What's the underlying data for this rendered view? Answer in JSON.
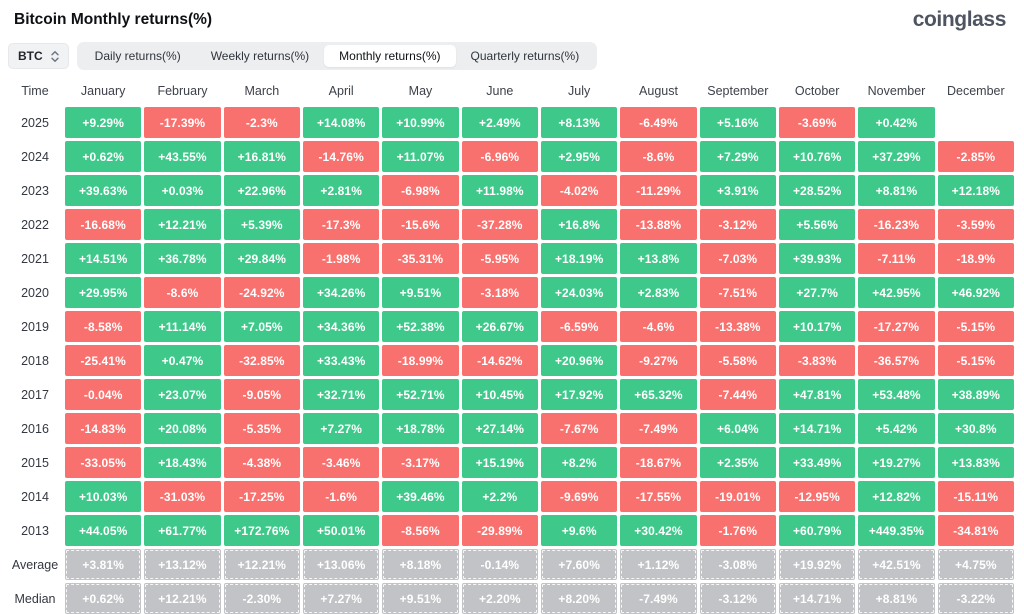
{
  "header": {
    "title": "Bitcoin Monthly returns(%)",
    "logo": "coinglass"
  },
  "toolbar": {
    "coin_selector": {
      "value": "BTC",
      "icon": "updown-chevron-icon"
    },
    "tabs": [
      {
        "label": "Daily returns(%)",
        "active": false
      },
      {
        "label": "Weekly returns(%)",
        "active": false
      },
      {
        "label": "Monthly returns(%)",
        "active": true
      },
      {
        "label": "Quarterly returns(%)",
        "active": false
      }
    ]
  },
  "colors": {
    "positive_green": "#3ec98b",
    "negative_red": "#f8716e",
    "aggregate_gray": "#c2c3c6",
    "tab_bar_bg": "#eceef0",
    "active_tab_bg": "#ffffff",
    "logo_gray": "#4e5461"
  },
  "table": {
    "time_header": "Time",
    "columns": [
      "January",
      "February",
      "March",
      "April",
      "May",
      "June",
      "July",
      "August",
      "September",
      "October",
      "November",
      "December"
    ],
    "rows": [
      {
        "label": "2025",
        "type": "year",
        "values": [
          "+9.29%",
          "-17.39%",
          "-2.3%",
          "+14.08%",
          "+10.99%",
          "+2.49%",
          "+8.13%",
          "-6.49%",
          "+5.16%",
          "-3.69%",
          "+0.42%",
          ""
        ]
      },
      {
        "label": "2024",
        "type": "year",
        "values": [
          "+0.62%",
          "+43.55%",
          "+16.81%",
          "-14.76%",
          "+11.07%",
          "-6.96%",
          "+2.95%",
          "-8.6%",
          "+7.29%",
          "+10.76%",
          "+37.29%",
          "-2.85%"
        ]
      },
      {
        "label": "2023",
        "type": "year",
        "values": [
          "+39.63%",
          "+0.03%",
          "+22.96%",
          "+2.81%",
          "-6.98%",
          "+11.98%",
          "-4.02%",
          "-11.29%",
          "+3.91%",
          "+28.52%",
          "+8.81%",
          "+12.18%"
        ]
      },
      {
        "label": "2022",
        "type": "year",
        "values": [
          "-16.68%",
          "+12.21%",
          "+5.39%",
          "-17.3%",
          "-15.6%",
          "-37.28%",
          "+16.8%",
          "-13.88%",
          "-3.12%",
          "+5.56%",
          "-16.23%",
          "-3.59%"
        ]
      },
      {
        "label": "2021",
        "type": "year",
        "values": [
          "+14.51%",
          "+36.78%",
          "+29.84%",
          "-1.98%",
          "-35.31%",
          "-5.95%",
          "+18.19%",
          "+13.8%",
          "-7.03%",
          "+39.93%",
          "-7.11%",
          "-18.9%"
        ]
      },
      {
        "label": "2020",
        "type": "year",
        "values": [
          "+29.95%",
          "-8.6%",
          "-24.92%",
          "+34.26%",
          "+9.51%",
          "-3.18%",
          "+24.03%",
          "+2.83%",
          "-7.51%",
          "+27.7%",
          "+42.95%",
          "+46.92%"
        ]
      },
      {
        "label": "2019",
        "type": "year",
        "values": [
          "-8.58%",
          "+11.14%",
          "+7.05%",
          "+34.36%",
          "+52.38%",
          "+26.67%",
          "-6.59%",
          "-4.6%",
          "-13.38%",
          "+10.17%",
          "-17.27%",
          "-5.15%"
        ]
      },
      {
        "label": "2018",
        "type": "year",
        "values": [
          "-25.41%",
          "+0.47%",
          "-32.85%",
          "+33.43%",
          "-18.99%",
          "-14.62%",
          "+20.96%",
          "-9.27%",
          "-5.58%",
          "-3.83%",
          "-36.57%",
          "-5.15%"
        ]
      },
      {
        "label": "2017",
        "type": "year",
        "values": [
          "-0.04%",
          "+23.07%",
          "-9.05%",
          "+32.71%",
          "+52.71%",
          "+10.45%",
          "+17.92%",
          "+65.32%",
          "-7.44%",
          "+47.81%",
          "+53.48%",
          "+38.89%"
        ]
      },
      {
        "label": "2016",
        "type": "year",
        "values": [
          "-14.83%",
          "+20.08%",
          "-5.35%",
          "+7.27%",
          "+18.78%",
          "+27.14%",
          "-7.67%",
          "-7.49%",
          "+6.04%",
          "+14.71%",
          "+5.42%",
          "+30.8%"
        ]
      },
      {
        "label": "2015",
        "type": "year",
        "values": [
          "-33.05%",
          "+18.43%",
          "-4.38%",
          "-3.46%",
          "-3.17%",
          "+15.19%",
          "+8.2%",
          "-18.67%",
          "+2.35%",
          "+33.49%",
          "+19.27%",
          "+13.83%"
        ]
      },
      {
        "label": "2014",
        "type": "year",
        "values": [
          "+10.03%",
          "-31.03%",
          "-17.25%",
          "-1.6%",
          "+39.46%",
          "+2.2%",
          "-9.69%",
          "-17.55%",
          "-19.01%",
          "-12.95%",
          "+12.82%",
          "-15.11%"
        ]
      },
      {
        "label": "2013",
        "type": "year",
        "values": [
          "+44.05%",
          "+61.77%",
          "+172.76%",
          "+50.01%",
          "-8.56%",
          "-29.89%",
          "+9.6%",
          "+30.42%",
          "-1.76%",
          "+60.79%",
          "+449.35%",
          "-34.81%"
        ]
      },
      {
        "label": "Average",
        "type": "aggregate",
        "values": [
          "+3.81%",
          "+13.12%",
          "+12.21%",
          "+13.06%",
          "+8.18%",
          "-0.14%",
          "+7.60%",
          "+1.12%",
          "-3.08%",
          "+19.92%",
          "+42.51%",
          "+4.75%"
        ]
      },
      {
        "label": "Median",
        "type": "aggregate",
        "values": [
          "+0.62%",
          "+12.21%",
          "-2.30%",
          "+7.27%",
          "+9.51%",
          "+2.20%",
          "+8.20%",
          "-7.49%",
          "-3.12%",
          "+14.71%",
          "+8.81%",
          "-3.22%"
        ]
      }
    ]
  }
}
